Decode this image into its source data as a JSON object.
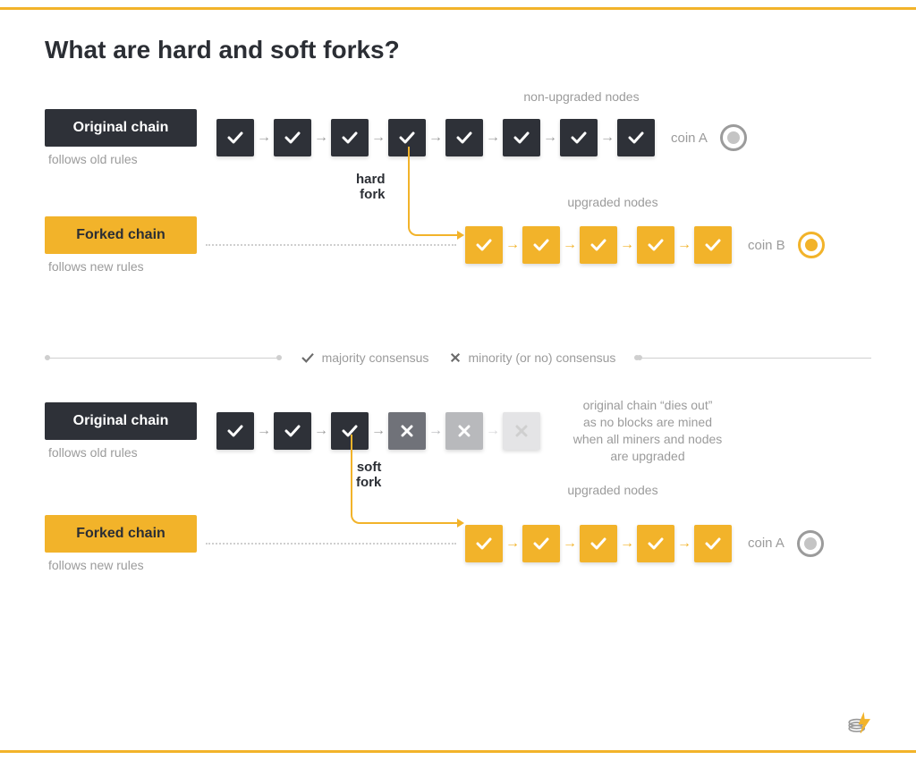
{
  "colors": {
    "accent": "#f2b32a",
    "dark": "#2e3138",
    "text_muted": "#9b9b9b",
    "border_top": "#f2b32a",
    "border_bottom": "#f2b32a",
    "gray_block_1": "#707279",
    "gray_block_2": "#b8b9bc",
    "gray_block_3": "#e4e4e6",
    "coin_gray_dot": "#c4c4c4"
  },
  "title": "What are hard and soft forks?",
  "hard_fork": {
    "original": {
      "label": "Original chain",
      "subtitle": "follows old rules",
      "blocks_count": 8,
      "block_color": "dark",
      "section_label": "non-upgraded nodes",
      "coin": "coin A",
      "coin_style": "gray"
    },
    "fork_label_line1": "hard",
    "fork_label_line2": "fork",
    "fork_from_block_index": 3,
    "forked": {
      "label": "Forked chain",
      "subtitle": "follows new rules",
      "blocks_count": 5,
      "block_color": "orange",
      "section_label": "upgraded nodes",
      "coin": "coin B",
      "coin_style": "orange"
    }
  },
  "legend": {
    "majority": "majority consensus",
    "minority": "minority (or no) consensus"
  },
  "soft_fork": {
    "original": {
      "label": "Original chain",
      "subtitle": "follows old rules",
      "check_blocks": 3,
      "faded_blocks": [
        "gray1",
        "gray2",
        "gray3"
      ],
      "dies_out": "original chain “dies out”\nas no blocks are mined\nwhen all miners and nodes\nare upgraded"
    },
    "fork_label_line1": "soft",
    "fork_label_line2": "fork",
    "fork_from_block_index": 2,
    "forked": {
      "label": "Forked chain",
      "subtitle": "follows new rules",
      "blocks_count": 5,
      "block_color": "orange",
      "section_label": "upgraded nodes",
      "coin": "coin A",
      "coin_style": "gray"
    }
  }
}
